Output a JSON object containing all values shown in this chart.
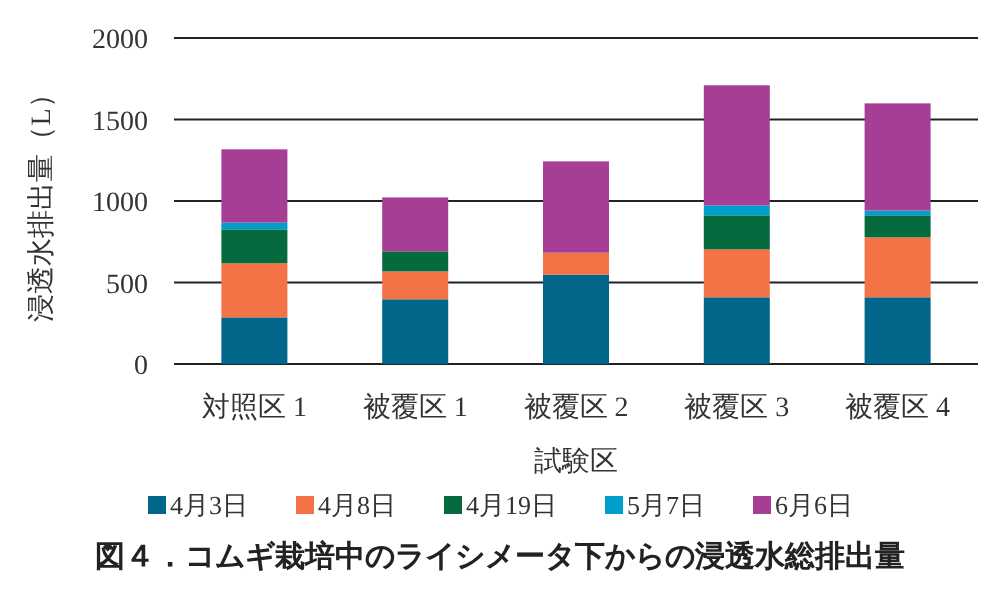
{
  "chart_data": {
    "type": "bar",
    "stacked": true,
    "title": "図４．コムギ栽培中のライシメータ下からの浸透水総排出量",
    "xlabel": "試験区",
    "ylabel": "浸透水排出量（L）",
    "categories": [
      "対照区 1",
      "被覆区 1",
      "被覆区 2",
      "被覆区 3",
      "被覆区 4"
    ],
    "series": [
      {
        "name": "4月3日",
        "color": "#00678a",
        "values": [
          286,
          397,
          548,
          409,
          409
        ]
      },
      {
        "name": "4月8日",
        "color": "#f47346",
        "values": [
          332,
          171,
          135,
          294,
          368
        ]
      },
      {
        "name": "4月19日",
        "color": "#066a3f",
        "values": [
          208,
          123,
          0,
          209,
          135
        ]
      },
      {
        "name": "5月7日",
        "color": "#009fcb",
        "values": [
          41,
          0,
          0,
          61,
          29
        ]
      },
      {
        "name": "6月6日",
        "color": "#a63e96",
        "values": [
          450,
          331,
          560,
          737,
          658
        ]
      }
    ],
    "ylim": [
      0,
      2000
    ],
    "yticks": [
      0,
      500,
      1000,
      1500,
      2000
    ],
    "grid": "y",
    "legend": "bottom"
  }
}
